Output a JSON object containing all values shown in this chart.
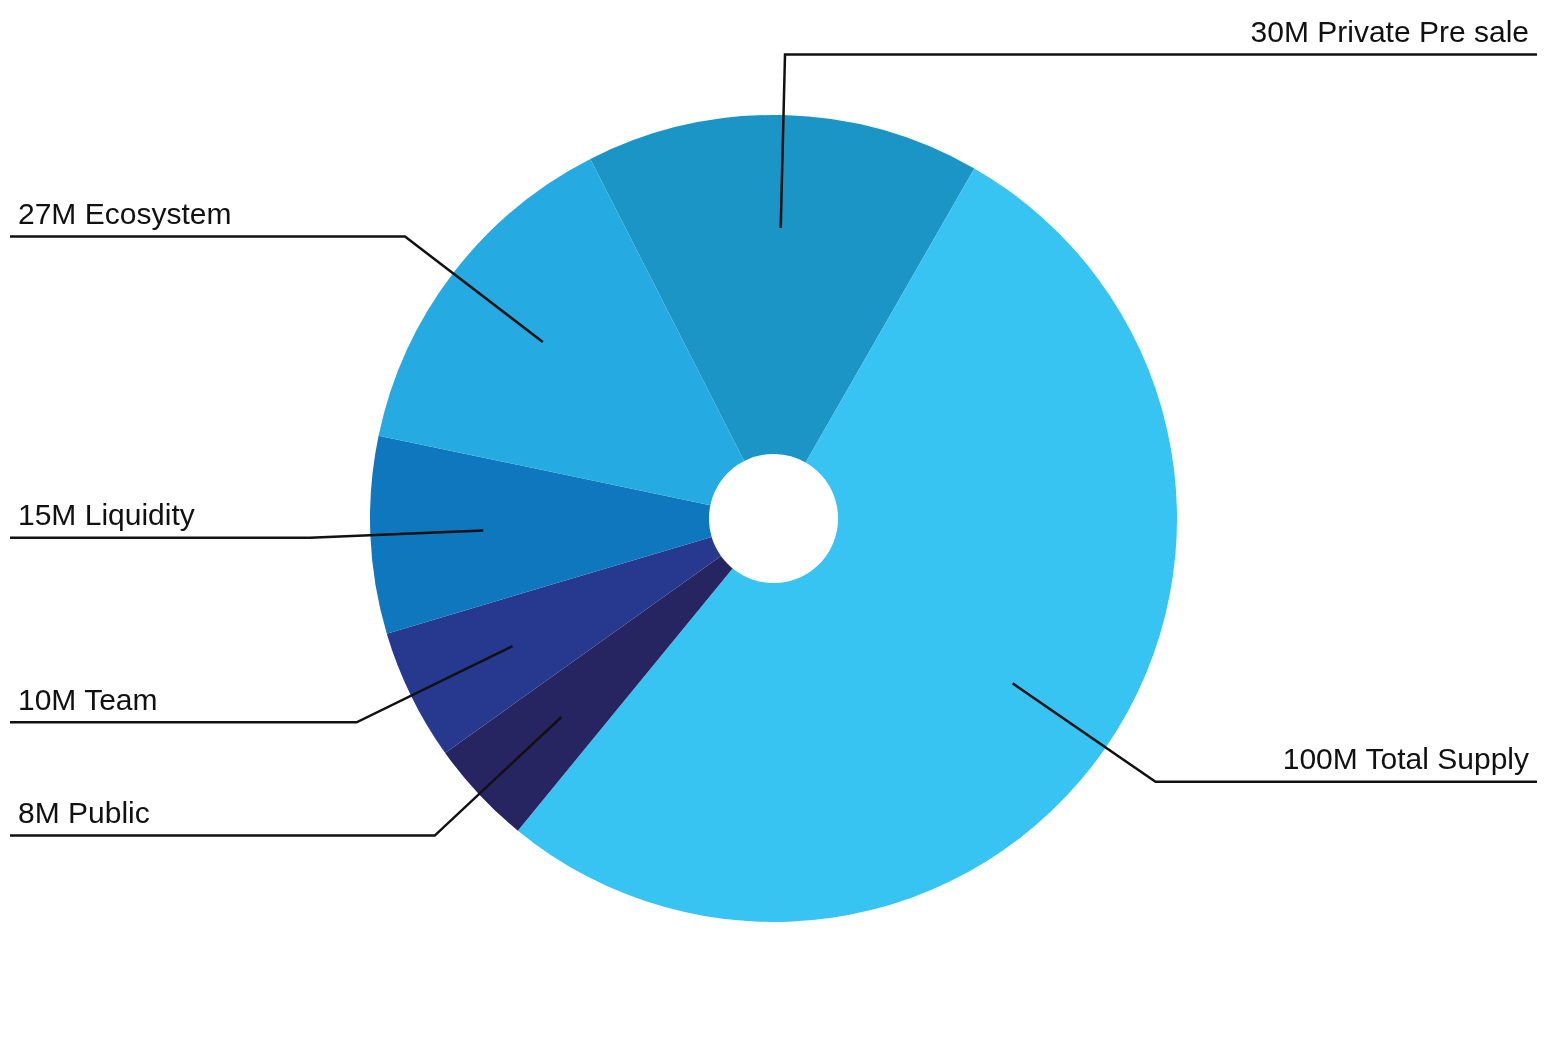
{
  "chart_data": {
    "type": "donut",
    "categories": [
      "30M Private Pre sale",
      "100M Total Supply",
      "8M Public",
      "10M Team",
      "15M Liquidity",
      "27M Ecosystem"
    ],
    "values": [
      30,
      100,
      8,
      10,
      15,
      27
    ],
    "colors": [
      "#1b95c5",
      "#38c4f2",
      "#272462",
      "#27398f",
      "#0f77bd",
      "#25aae1"
    ],
    "legend": false
  }
}
